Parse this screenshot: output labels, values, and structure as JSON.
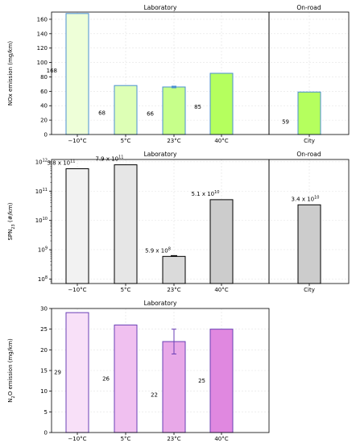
{
  "chart_data": [
    {
      "type": "bar",
      "panels": [
        {
          "title": "Laboratory",
          "categories": [
            "−10°C",
            "5°C",
            "23°C",
            "40°C"
          ]
        },
        {
          "title": "On-road",
          "categories": [
            "City"
          ]
        }
      ],
      "ylabel": "NOx emission (mg/km)",
      "ylim": [
        0,
        170
      ],
      "yticks": [
        "0",
        "20",
        "40",
        "60",
        "80",
        "100",
        "120",
        "140",
        "160"
      ],
      "values": [
        168,
        68,
        66,
        85,
        59
      ],
      "value_labels": [
        "168",
        "68",
        "66",
        "85",
        "59"
      ],
      "error": [
        null,
        null,
        1.0,
        null,
        null
      ],
      "colors": [
        "#eeffd8",
        "#ddffb5",
        "#c7ff8a",
        "#b5ff5e",
        "#b5ff5e"
      ],
      "edge_color": "#4a8fd1",
      "grid": true
    },
    {
      "type": "bar",
      "scale": "log",
      "panels": [
        {
          "title": "Laboratory",
          "categories": [
            "−10°C",
            "5°C",
            "23°C",
            "40°C"
          ]
        },
        {
          "title": "On-road",
          "categories": [
            "City"
          ]
        }
      ],
      "ylabel": "SPN23 (#/km)",
      "ylim": [
        70000000,
        1200000000000
      ],
      "yticks": [
        "10^8",
        "10^9",
        "10^10",
        "10^11",
        "10^12"
      ],
      "values": [
        580000000000,
        790000000000,
        590000000,
        51000000000,
        34000000000
      ],
      "value_labels": [
        "5.8 x 10^11",
        "7.9 x 10^11",
        "5.9 x 10^8",
        "5.1 x 10^10",
        "3.4 x 10^10"
      ],
      "error": [
        null,
        null,
        30000000,
        null,
        null
      ],
      "colors": [
        "#f2f2f2",
        "#e6e6e6",
        "#dadada",
        "#cccccc",
        "#cccccc"
      ],
      "edge_color": "#000000",
      "grid": true
    },
    {
      "type": "bar",
      "panels": [
        {
          "title": "Laboratory",
          "categories": [
            "−10°C",
            "5°C",
            "23°C",
            "40°C"
          ]
        }
      ],
      "ylabel": "N2O emission (mg/km)",
      "ylim": [
        0,
        30
      ],
      "yticks": [
        "0",
        "5",
        "10",
        "15",
        "20",
        "25",
        "30"
      ],
      "values": [
        29,
        26,
        22,
        25
      ],
      "value_labels": [
        "29",
        "26",
        "22",
        "25"
      ],
      "error": [
        null,
        null,
        3.0,
        null
      ],
      "colors": [
        "#f8e0f8",
        "#f0c0f0",
        "#e8a8e8",
        "#e088e0"
      ],
      "edge_color": "#6a3fb5",
      "grid": true
    }
  ]
}
